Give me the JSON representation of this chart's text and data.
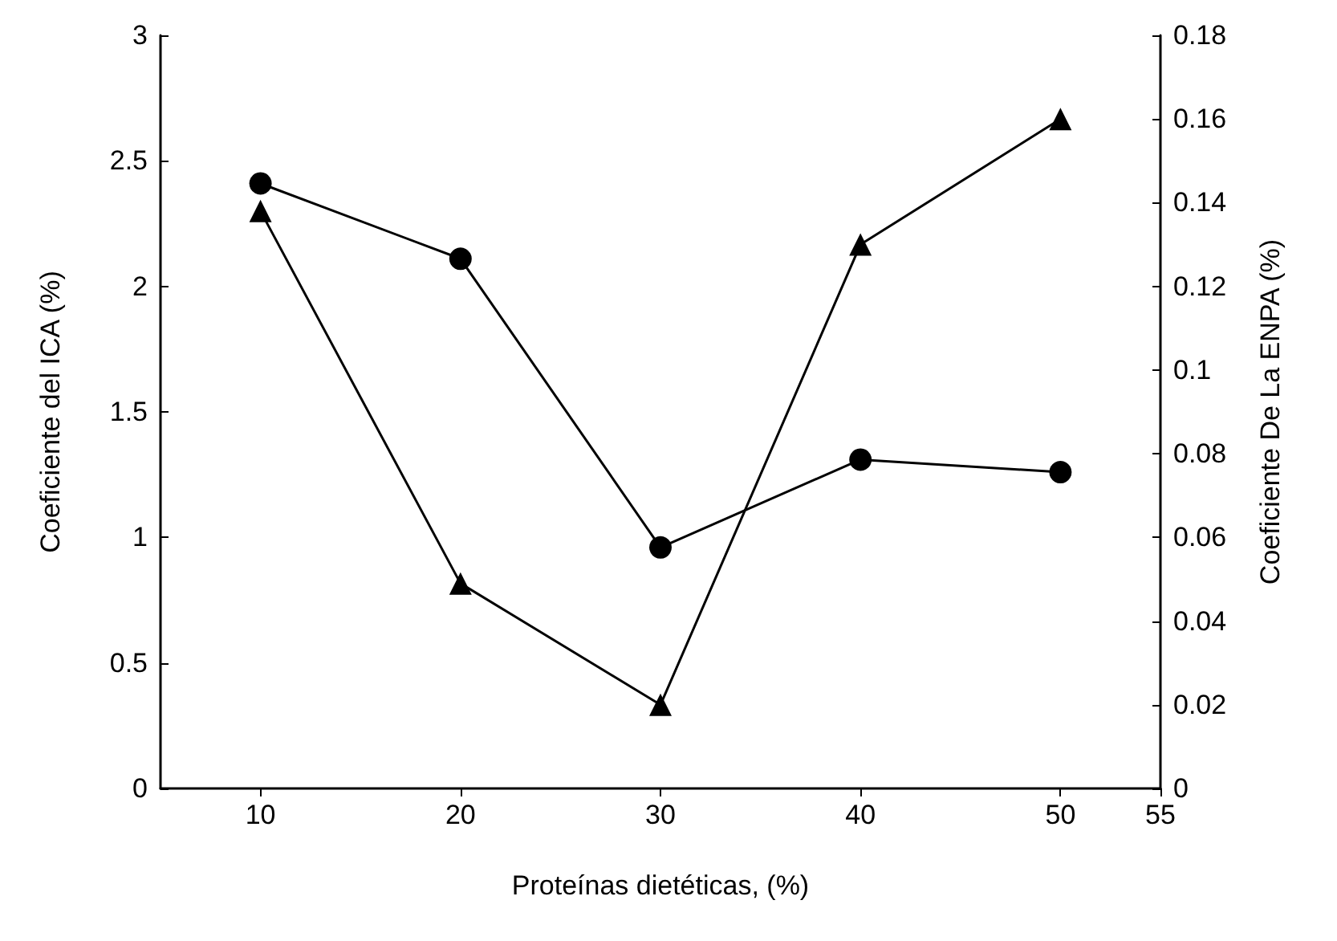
{
  "chart_data": {
    "type": "line",
    "xlabel": "Proteínas dietéticas, (%)",
    "ylabel": "Coeficiente del ICA (%)",
    "y2label": "Coeficiente De La ENPA (%)",
    "x": [
      10,
      20,
      30,
      40,
      50
    ],
    "series": [
      {
        "color": "#000000",
        "marker": "circle",
        "values": [
          2.41,
          2.11,
          0.96,
          1.31,
          1.26
        ]
      },
      {
        "color": "#000000",
        "marker": "triangle",
        "axis": "y2",
        "values": [
          0.138,
          0.049,
          0.02,
          0.13,
          0.16
        ]
      }
    ],
    "xlim": [
      5,
      55
    ],
    "xticks": [
      10,
      20,
      30,
      40,
      50,
      55
    ],
    "ylim": [
      0,
      3
    ],
    "yticks": [
      0,
      0.5,
      1,
      1.5,
      2,
      2.5,
      3
    ],
    "y2lim": [
      0,
      0.18
    ],
    "y2ticks": [
      0,
      0.02,
      0.04,
      0.06,
      0.08,
      0.1,
      0.12,
      0.14,
      0.16,
      0.18
    ],
    "line_style": "solid"
  }
}
